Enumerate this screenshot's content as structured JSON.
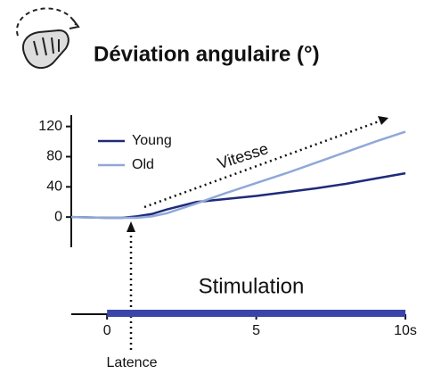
{
  "chart_data": {
    "type": "line",
    "title": "Déviation angulaire (°)",
    "x": [
      -1.2,
      0,
      0.5,
      1,
      1.5,
      2,
      3,
      4,
      5,
      6,
      7,
      8,
      9,
      10
    ],
    "series": [
      {
        "name": "Young",
        "color": "#1f2a7a",
        "values": [
          0,
          -1,
          -1,
          1,
          4,
          10,
          20,
          24,
          28,
          33,
          38,
          44,
          51,
          58
        ]
      },
      {
        "name": "Old",
        "color": "#8fa8d8",
        "values": [
          0,
          -1,
          -1,
          -1,
          1,
          5,
          18,
          32,
          45,
          58,
          72,
          86,
          100,
          113
        ]
      }
    ],
    "xlim": [
      -1.2,
      10
    ],
    "xticks": [
      0,
      5,
      {
        "value": 10,
        "label": "10s"
      }
    ],
    "ylim": [
      -40,
      135
    ],
    "yticks": [
      0,
      40,
      80,
      120
    ],
    "stimulation": [
      0,
      10
    ],
    "stimulation_color": "#3a45a8",
    "annotations": {
      "speed": "Vitesse",
      "latency": "Latence",
      "stimulation": "Stimulation"
    }
  }
}
